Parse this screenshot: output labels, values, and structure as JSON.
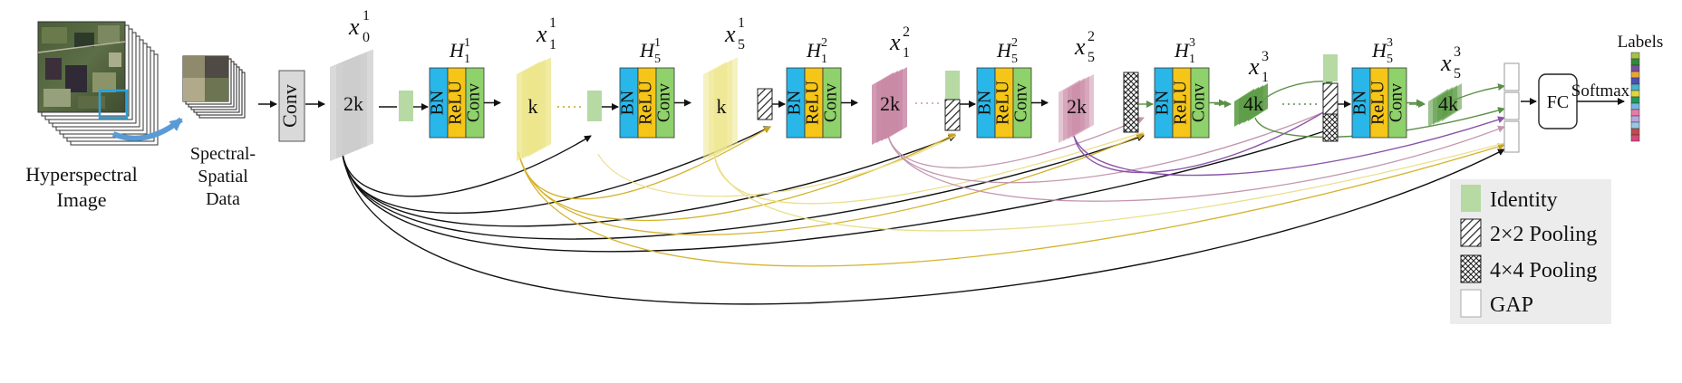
{
  "input": {
    "image_label_1": "Hyperspectral",
    "image_label_2": "Image",
    "patch_label_1": "Spectral-",
    "patch_label_2": "Spatial",
    "patch_label_3": "Data",
    "conv": "Conv"
  },
  "features": {
    "x0": {
      "sym": "x",
      "sub": "0",
      "sup": "1",
      "ch": "2k"
    },
    "x11": {
      "sym": "x",
      "sub": "1",
      "sup": "1",
      "ch": "k"
    },
    "x51": {
      "sym": "x",
      "sub": "5",
      "sup": "1",
      "ch": "k"
    },
    "x12": {
      "sym": "x",
      "sub": "1",
      "sup": "2",
      "ch": "2k"
    },
    "x52": {
      "sym": "x",
      "sub": "5",
      "sup": "2",
      "ch": "2k"
    },
    "x13": {
      "sym": "x",
      "sub": "1",
      "sup": "3",
      "ch": "4k"
    },
    "x53": {
      "sym": "x",
      "sub": "5",
      "sup": "3",
      "ch": "4k"
    }
  },
  "h_blocks": [
    {
      "sym": "H",
      "sub": "1",
      "sup": "1"
    },
    {
      "sym": "H",
      "sub": "5",
      "sup": "1"
    },
    {
      "sym": "H",
      "sub": "1",
      "sup": "2"
    },
    {
      "sym": "H",
      "sub": "5",
      "sup": "2"
    },
    {
      "sym": "H",
      "sub": "1",
      "sup": "3"
    },
    {
      "sym": "H",
      "sub": "5",
      "sup": "3"
    }
  ],
  "layers": {
    "bn": "BN",
    "relu": "ReLU",
    "conv": "Conv"
  },
  "head": {
    "fc": "FC",
    "softmax": "Softmax",
    "labels": "Labels"
  },
  "legend": {
    "identity": "Identity",
    "pool2": "2×2 Pooling",
    "pool4": "4×4 Pooling",
    "gap": "GAP"
  },
  "colors": {
    "bn": "#29b6e8",
    "relu": "#f5c518",
    "conv": "#8fd16a",
    "block1": "#ede68c",
    "block2": "#c98aa6",
    "block3": "#5e9d48",
    "identity": "#b7d9a3",
    "gray_feature": "#cccccc",
    "legend_bg": "#ececec",
    "conn_black": "#111111",
    "conn_gold": "#c9a31c",
    "conn_purple": "#8a54a8",
    "conn_pink": "#c397b0",
    "conn_green": "#5a8f47",
    "label_bar": [
      "#a4c24a",
      "#2f8a3a",
      "#7a4f99",
      "#e8a53a",
      "#4f4fb0",
      "#49b3c9",
      "#e3d53e",
      "#1e9a61",
      "#7ab3e3",
      "#e97ba5",
      "#b7a6de",
      "#99c8e6",
      "#c24a4a",
      "#d4487b"
    ]
  }
}
